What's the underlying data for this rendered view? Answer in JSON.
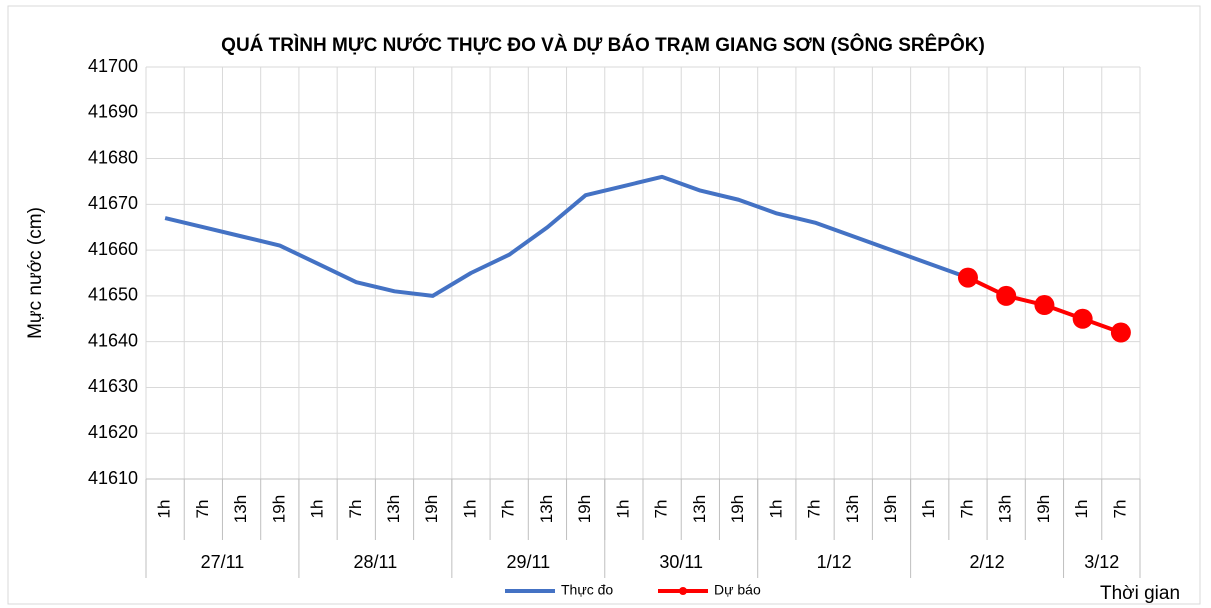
{
  "chart_data": {
    "type": "line",
    "title": "QUÁ TRÌNH MỰC NƯỚC THỰC ĐO VÀ DỰ BÁO TRẠM GIANG SƠN (SÔNG SRÊPÔK)",
    "y_label": "Mực nước (cm)",
    "x_label": "Thời gian",
    "categories": [
      "1h",
      "7h",
      "13h",
      "19h",
      "1h",
      "7h",
      "13h",
      "19h",
      "1h",
      "7h",
      "13h",
      "19h",
      "1h",
      "7h",
      "13h",
      "19h",
      "1h",
      "7h",
      "13h",
      "19h",
      "1h",
      "7h",
      "13h",
      "19h",
      "1h",
      "7h"
    ],
    "groups": [
      {
        "label": "27/11",
        "count": 4
      },
      {
        "label": "28/11",
        "count": 4
      },
      {
        "label": "29/11",
        "count": 4
      },
      {
        "label": "30/11",
        "count": 4
      },
      {
        "label": "1/12",
        "count": 4
      },
      {
        "label": "2/12",
        "count": 4
      },
      {
        "label": "3/12",
        "count": 2
      }
    ],
    "series": [
      {
        "name": "Thực đo",
        "color": "#4472c4",
        "values": [
          41667,
          41665,
          41663,
          41661,
          41657,
          41653,
          41651,
          41650,
          41655,
          41659,
          41665,
          41672,
          41674,
          41676,
          41673,
          41671,
          41668,
          41666,
          41663,
          41660,
          41657,
          41654,
          null,
          null,
          null,
          null
        ]
      },
      {
        "name": "Dự báo",
        "color": "#ff0000",
        "values": [
          null,
          null,
          null,
          null,
          null,
          null,
          null,
          null,
          null,
          null,
          null,
          null,
          null,
          null,
          null,
          null,
          null,
          null,
          null,
          null,
          null,
          41654,
          41650,
          41648,
          41645,
          41642
        ]
      }
    ],
    "ylim": [
      41610,
      41700
    ],
    "yticks": [
      41610,
      41620,
      41630,
      41640,
      41650,
      41660,
      41670,
      41680,
      41690,
      41700
    ],
    "grid": true
  }
}
